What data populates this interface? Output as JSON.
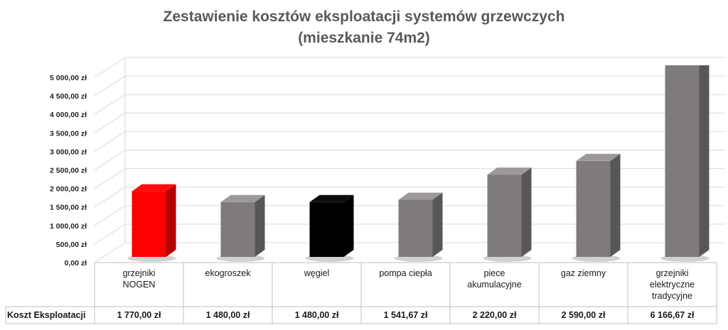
{
  "chart_data": {
    "type": "bar3d",
    "title": "Zestawienie kosztów eksploatacji systemów grzewczych",
    "subtitle": "(mieszkanie 74m2)",
    "table_row_label": "Koszt Eksploatacji",
    "categories": [
      "grzejniki NOGEN",
      "ekogroszek",
      "węgiel",
      "pompa ciepła",
      "piece akumulacyjne",
      "gaz ziemny",
      "grzejniki elektryczne tradycyjne"
    ],
    "values": [
      1770,
      1480,
      1480,
      1541.67,
      2220,
      2590,
      6166.67
    ],
    "value_labels": [
      "1 770,00 zł",
      "1 480,00 zł",
      "1 480,00 zł",
      "1 541,67 zł",
      "2 220,00 zł",
      "2 590,00 zł",
      "6 166,67 zł"
    ],
    "colors": [
      "#ff0000",
      "#7f7b7b",
      "#000000",
      "#7f7b7b",
      "#7f7b7b",
      "#7f7b7b",
      "#7f7b7b"
    ],
    "ylim": [
      0,
      5000
    ],
    "yticks": [
      {
        "value": 0,
        "label": "0,00 zł"
      },
      {
        "value": 500,
        "label": "500,00 zł"
      },
      {
        "value": 1000,
        "label": "1 000,00 zł"
      },
      {
        "value": 1500,
        "label": "1 500,00 zł"
      },
      {
        "value": 2000,
        "label": "2 000,00 zł"
      },
      {
        "value": 2500,
        "label": "2 500,00 zł"
      },
      {
        "value": 3000,
        "label": "3 000,00 zł"
      },
      {
        "value": 3500,
        "label": "3 500,00 zł"
      },
      {
        "value": 4000,
        "label": "4 000,00 zł"
      },
      {
        "value": 4500,
        "label": "4 500,00 zł"
      },
      {
        "value": 5000,
        "label": "5 000,00 zł"
      }
    ],
    "grid": true
  }
}
